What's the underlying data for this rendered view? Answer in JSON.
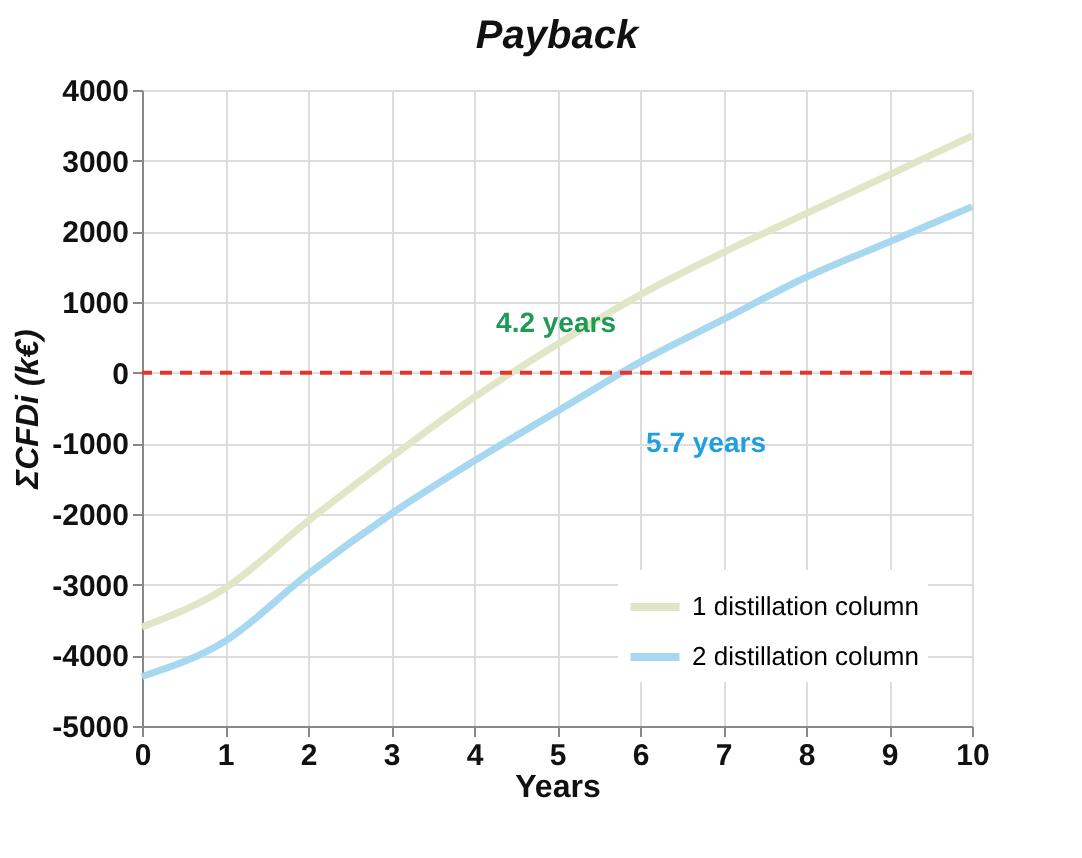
{
  "chart_data": {
    "type": "line",
    "title": "Payback",
    "xlabel": "Years",
    "ylabel": "ΣCFDi (k€)",
    "x": [
      0,
      1,
      2,
      3,
      4,
      5,
      6,
      7,
      8,
      9,
      10
    ],
    "series": [
      {
        "name": "1 distillation column",
        "color": "#e0e6c6",
        "values": [
          -3600,
          -3050,
          -2100,
          -1200,
          -350,
          400,
          1100,
          1700,
          2250,
          2800,
          3350
        ]
      },
      {
        "name": "2 distillation column",
        "color": "#a8d8f0",
        "values": [
          -4300,
          -3800,
          -2850,
          -2000,
          -1250,
          -550,
          150,
          750,
          1350,
          1850,
          2350
        ]
      }
    ],
    "xlim": [
      0,
      10
    ],
    "xticks": [
      0,
      1,
      2,
      3,
      4,
      5,
      6,
      7,
      8,
      9,
      10
    ],
    "ylim": [
      -5000,
      4000
    ],
    "yticks": [
      -5000,
      -4000,
      -3000,
      -2000,
      -1000,
      0,
      1000,
      2000,
      3000,
      4000
    ],
    "grid": true,
    "legend": "bottom right",
    "line_style": "solid",
    "ref_lines": [
      {
        "axis": "y",
        "value": 0,
        "color": "#e8332a",
        "line_style": "dashed"
      }
    ],
    "annotations": [
      "4.2 years",
      "5.7 years"
    ]
  }
}
